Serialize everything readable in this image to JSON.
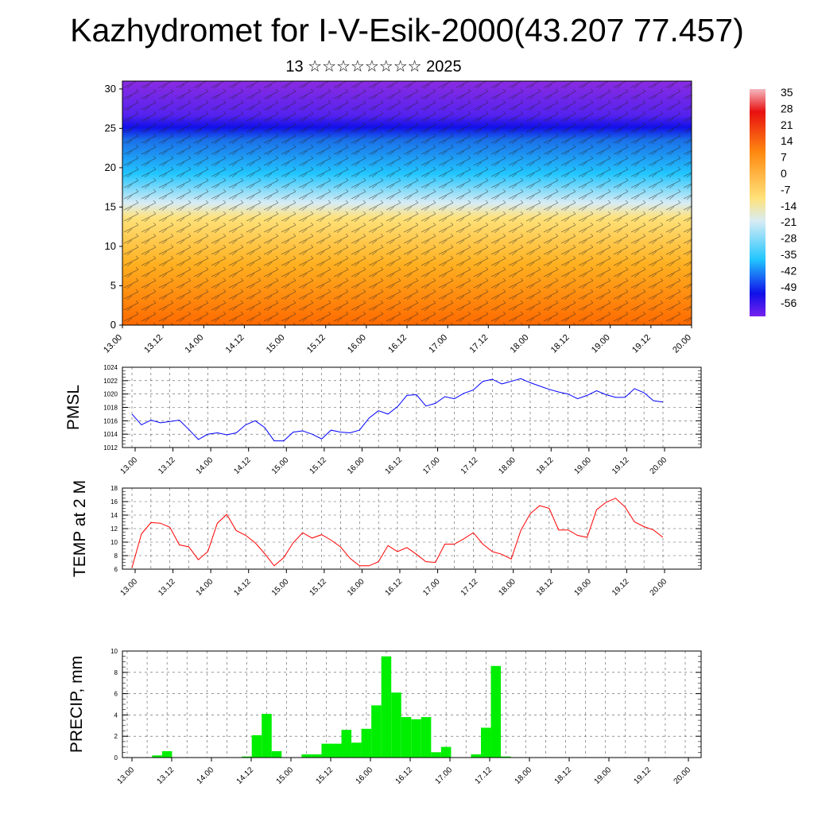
{
  "title": "Kazhydromet for I-V-Esik-2000(43.207 77.457)",
  "subtitle": "13 ☆☆☆☆☆☆☆☆ 2025",
  "chart_data": [
    {
      "type": "heatmap",
      "name": "vertical-profile",
      "x_tick_labels": [
        "13.00",
        "13.12",
        "14.00",
        "14.12",
        "15.00",
        "15.12",
        "16.00",
        "16.12",
        "17.00",
        "17.12",
        "18.00",
        "18.12",
        "19.00",
        "19.12",
        "20.00"
      ],
      "y_tick_labels": [
        "0",
        "5",
        "10",
        "15",
        "20",
        "25",
        "30"
      ],
      "ylim": [
        0,
        31
      ],
      "colorbar_labels": [
        "35",
        "28",
        "21",
        "14",
        "7",
        "0",
        "-7",
        "-14",
        "-21",
        "-28",
        "-35",
        "-42",
        "-49",
        "-56"
      ],
      "colors": {
        "warm": "#ff6a00",
        "mid": "#ffe27a",
        "cool": "#22c6ff",
        "cold": "#1010e8",
        "top": "#8a2be2"
      },
      "overlay": "wind barbs"
    },
    {
      "type": "line",
      "name": "pmsl",
      "ylabel": "PMSL",
      "color": "#0000ff",
      "ylim": [
        1012,
        1024
      ],
      "y_tick_labels": [
        "1012",
        "1014",
        "1016",
        "1018",
        "1020",
        "1022",
        "1024"
      ],
      "x_tick_labels": [
        "13.00",
        "13.12",
        "14.00",
        "14.12",
        "15.00",
        "15.12",
        "16.00",
        "16.12",
        "17.00",
        "17.12",
        "18.00",
        "18.12",
        "19.00",
        "19.12",
        "20.00"
      ],
      "values": [
        1017.0,
        1015.4,
        1016.1,
        1015.7,
        1015.9,
        1016.1,
        1014.7,
        1013.2,
        1014.0,
        1014.2,
        1013.9,
        1014.2,
        1015.4,
        1016.0,
        1015.0,
        1013.0,
        1013.0,
        1014.3,
        1014.5,
        1014.0,
        1013.3,
        1014.6,
        1014.3,
        1014.2,
        1014.6,
        1016.4,
        1017.5,
        1017.0,
        1018.1,
        1019.8,
        1019.9,
        1018.2,
        1018.6,
        1019.6,
        1019.3,
        1020.1,
        1020.6,
        1021.9,
        1022.2,
        1021.5,
        1021.9,
        1022.3,
        1021.7,
        1021.2,
        1020.7,
        1020.3,
        1020.0,
        1019.3,
        1019.8,
        1020.5,
        1019.9,
        1019.5,
        1019.5,
        1020.8,
        1020.2,
        1019.0,
        1018.8
      ]
    },
    {
      "type": "line",
      "name": "temp-2m",
      "ylabel": "TEMP at 2 M",
      "color": "#ff0000",
      "ylim": [
        6,
        18
      ],
      "y_tick_labels": [
        "6",
        "8",
        "10",
        "12",
        "14",
        "16",
        "18"
      ],
      "x_tick_labels": [
        "13.00",
        "13.12",
        "14.00",
        "14.12",
        "15.00",
        "15.12",
        "16.00",
        "16.12",
        "17.00",
        "17.12",
        "18.00",
        "18.12",
        "19.00",
        "19.12",
        "20.00"
      ],
      "values": [
        6.2,
        11.2,
        12.9,
        12.8,
        12.2,
        9.6,
        9.3,
        7.4,
        8.6,
        12.8,
        14.1,
        11.7,
        11.0,
        9.9,
        8.3,
        6.5,
        7.7,
        9.9,
        11.4,
        10.6,
        11.1,
        10.3,
        9.3,
        7.6,
        6.5,
        6.5,
        7.1,
        9.5,
        8.6,
        9.2,
        8.2,
        7.1,
        7.0,
        9.7,
        9.7,
        10.5,
        11.4,
        9.7,
        8.6,
        8.2,
        7.5,
        11.7,
        14.2,
        15.4,
        15.0,
        11.8,
        11.8,
        11.0,
        10.7,
        14.8,
        15.9,
        16.5,
        15.2,
        13.0,
        12.3,
        11.8,
        10.7
      ]
    },
    {
      "type": "bar",
      "name": "precip",
      "ylabel": "PRECIP, mm",
      "color": "#00ee00",
      "ylim": [
        0,
        10
      ],
      "y_tick_labels": [
        "0",
        "2",
        "4",
        "6",
        "8",
        "10"
      ],
      "x_tick_labels": [
        "13.00",
        "13.12",
        "14.00",
        "14.12",
        "15.00",
        "15.12",
        "16.00",
        "16.12",
        "17.00",
        "17.12",
        "18.00",
        "18.12",
        "19.00",
        "19.12",
        "20.00"
      ],
      "values": [
        0,
        0,
        0,
        0.2,
        0.6,
        0,
        0,
        0,
        0,
        0,
        0,
        0,
        0.1,
        2.1,
        4.1,
        0.6,
        0,
        0,
        0.3,
        0.3,
        1.3,
        1.3,
        2.6,
        1.4,
        2.7,
        4.9,
        9.5,
        6.1,
        3.8,
        3.6,
        3.8,
        0.5,
        1.0,
        0,
        0,
        0.3,
        2.8,
        8.6,
        0.1,
        0,
        0,
        0,
        0,
        0,
        0,
        0,
        0,
        0,
        0,
        0,
        0,
        0,
        0,
        0,
        0,
        0,
        0
      ]
    }
  ]
}
